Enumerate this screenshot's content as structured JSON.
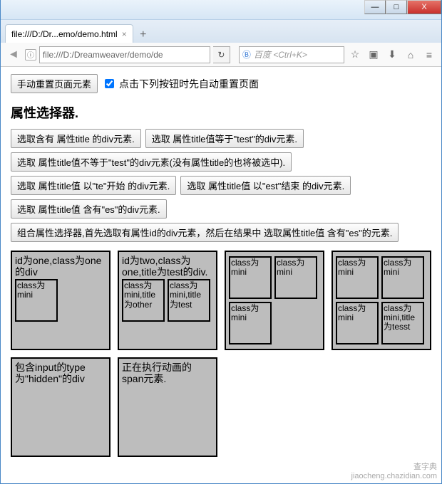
{
  "window": {
    "tab_title": "file:///D:/Dr...emo/demo.html",
    "url": "file:///D:/Dreamweaver/demo/de",
    "search_engine": "百度",
    "search_placeholder": "<Ctrl+K>",
    "reload_glyph": "↻",
    "min_glyph": "—",
    "max_glyph": "□",
    "close_glyph": "X"
  },
  "controls": {
    "reset_button": "手动重置页面元素",
    "autoreset_label": "点击下列按钮时先自动重置页面",
    "autoreset_checked": true
  },
  "section_title": "属性选择器.",
  "ops": {
    "btn1": "选取含有 属性title 的div元素.",
    "btn2": "选取 属性title值等于\"test\"的div元素.",
    "btn3": "选取 属性title值不等于\"test\"的div元素(没有属性title的也将被选中).",
    "btn4": "选取 属性title值 以\"te\"开始 的div元素.",
    "btn5": "选取 属性title值 以\"est\"结束 的div元素.",
    "btn6": "选取 属性title值 含有\"es\"的div元素.",
    "btn7": "组合属性选择器,首先选取有属性id的div元素，然后在结果中 选取属性title值 含有\"es\"的元素."
  },
  "panels": [
    {
      "text": "id为one,class为one的div",
      "minis": [
        {
          "text": "class为mini"
        }
      ]
    },
    {
      "text": "id为two,class为one,title为test的div.",
      "minis": [
        {
          "text": "class为mini,title为other"
        },
        {
          "text": "class为mini,title为test"
        }
      ]
    },
    {
      "text": "",
      "minis": [
        {
          "text": "class为mini"
        },
        {
          "text": "class为mini"
        },
        {
          "text": "class为mini"
        }
      ]
    },
    {
      "text": "",
      "minis": [
        {
          "text": "class为mini"
        },
        {
          "text": "class为mini"
        },
        {
          "text": "class为mini"
        },
        {
          "text": "class为mini,title为tesst"
        }
      ]
    },
    {
      "text": "包含input的type为\"hidden\"的div",
      "minis": []
    },
    {
      "text": "正在执行动画的span元素.",
      "minis": []
    }
  ],
  "watermark": {
    "line1": "查字典",
    "line2": "jiaocheng.chazidian.com"
  },
  "colors": {
    "panel_bg": "#bdbdbd",
    "panel_border": "#000000"
  }
}
